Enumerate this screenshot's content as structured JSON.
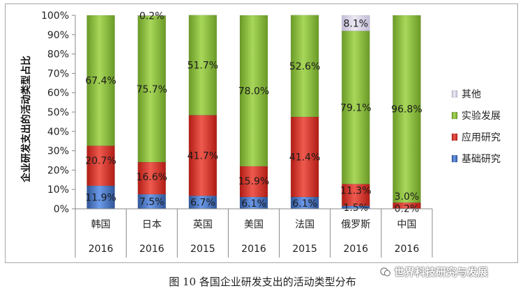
{
  "caption": "图 10 各国企业研发支出的活动类型分布",
  "watermark": "世界科技研究与发展",
  "chart_data": {
    "type": "bar",
    "stacked": true,
    "ylabel": "企业研发支出的活动类型占比",
    "ylim": [
      0,
      100
    ],
    "yticks": [
      "0%",
      "10%",
      "20%",
      "30%",
      "40%",
      "50%",
      "60%",
      "70%",
      "80%",
      "90%",
      "100%"
    ],
    "categories": [
      "韩国",
      "日本",
      "英国",
      "美国",
      "法国",
      "俄罗斯",
      "中国"
    ],
    "years": [
      "2016",
      "2016",
      "2015",
      "2016",
      "2015",
      "2016",
      "2016"
    ],
    "legend_position": "right",
    "series": [
      {
        "name": "基础研究",
        "color": "#4472c4",
        "values": [
          11.9,
          7.5,
          6.7,
          6.1,
          6.1,
          1.5,
          0.2
        ],
        "labels": [
          "11.9%",
          "7.5%",
          "6.7%",
          "6.1%",
          "6.1%",
          "1.5%",
          "0.2%"
        ]
      },
      {
        "name": "应用研究",
        "color": "#e03c31",
        "values": [
          20.7,
          16.6,
          41.7,
          15.9,
          41.4,
          11.3,
          3.0
        ],
        "labels": [
          "20.7%",
          "16.6%",
          "41.7%",
          "15.9%",
          "41.4%",
          "11.3%",
          "3.0%"
        ]
      },
      {
        "name": "实验发展",
        "color": "#8dc63f",
        "values": [
          67.4,
          75.7,
          51.7,
          78.0,
          52.6,
          79.1,
          96.8
        ],
        "labels": [
          "67.4%",
          "75.7%",
          "51.7%",
          "78.0%",
          "52.6%",
          "79.1%",
          "96.8%"
        ]
      },
      {
        "name": "其他",
        "color": "#d9d5e6",
        "values": [
          0,
          0.2,
          0,
          0,
          0,
          8.1,
          0
        ],
        "labels": [
          "",
          "0.2%",
          "",
          "",
          "",
          "8.1%",
          ""
        ]
      }
    ]
  }
}
